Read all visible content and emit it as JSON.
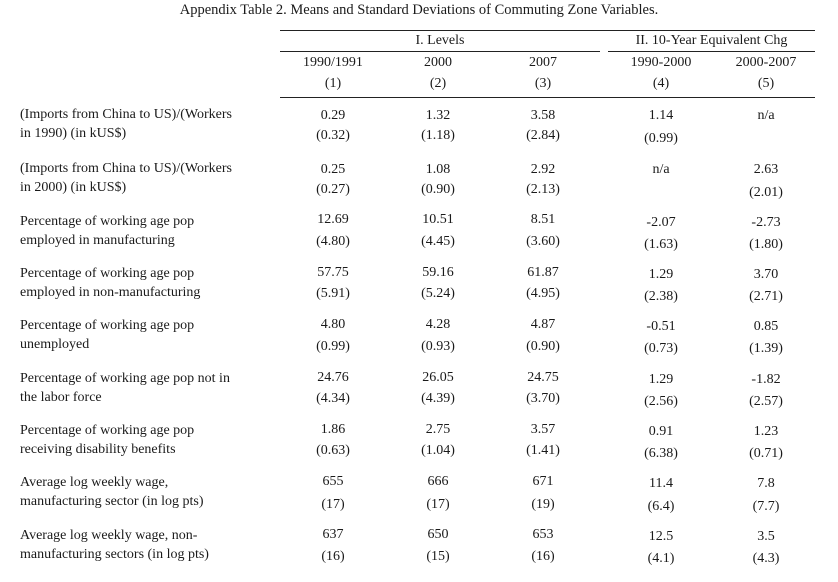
{
  "title": "Appendix Table 2. Means and Standard Deviations of Commuting Zone Variables.",
  "groups": {
    "levels": "I. Levels",
    "changes": "II. 10-Year Equivalent Chg"
  },
  "columns": [
    {
      "header": "1990/1991",
      "num": "(1)"
    },
    {
      "header": "2000",
      "num": "(2)"
    },
    {
      "header": "2007",
      "num": "(3)"
    },
    {
      "header": "1990-2000",
      "num": "(4)"
    },
    {
      "header": "2000-2007",
      "num": "(5)"
    }
  ],
  "rows": [
    {
      "label": [
        "(Imports from China to US)/(Workers",
        "in 1990) (in kUS$)"
      ],
      "means": [
        "0.29",
        "1.32",
        "3.58",
        "1.14",
        "n/a"
      ],
      "sds": [
        "(0.32)",
        "(1.18)",
        "(2.84)",
        "(0.99)",
        ""
      ]
    },
    {
      "label": [
        "(Imports from China to US)/(Workers",
        "in 2000) (in kUS$)"
      ],
      "means": [
        "0.25",
        "1.08",
        "2.92",
        "n/a",
        "2.63"
      ],
      "sds": [
        "(0.27)",
        "(0.90)",
        "(2.13)",
        "",
        "(2.01)"
      ]
    },
    {
      "label": [
        "Percentage of working age pop",
        "employed in manufacturing"
      ],
      "means": [
        "12.69",
        "10.51",
        "8.51",
        "-2.07",
        "-2.73"
      ],
      "sds": [
        "(4.80)",
        "(4.45)",
        "(3.60)",
        "(1.63)",
        "(1.80)"
      ]
    },
    {
      "label": [
        "Percentage of working age pop",
        "employed in non-manufacturing"
      ],
      "means": [
        "57.75",
        "59.16",
        "61.87",
        "1.29",
        "3.70"
      ],
      "sds": [
        "(5.91)",
        "(5.24)",
        "(4.95)",
        "(2.38)",
        "(2.71)"
      ]
    },
    {
      "label": [
        "Percentage of working age pop",
        "unemployed"
      ],
      "means": [
        "4.80",
        "4.28",
        "4.87",
        "-0.51",
        "0.85"
      ],
      "sds": [
        "(0.99)",
        "(0.93)",
        "(0.90)",
        "(0.73)",
        "(1.39)"
      ]
    },
    {
      "label": [
        "Percentage of working age pop not in",
        "the labor force"
      ],
      "means": [
        "24.76",
        "26.05",
        "24.75",
        "1.29",
        "-1.82"
      ],
      "sds": [
        "(4.34)",
        "(4.39)",
        "(3.70)",
        "(2.56)",
        "(2.57)"
      ]
    },
    {
      "label": [
        "Percentage of working age pop",
        "receiving disability benefits"
      ],
      "means": [
        "1.86",
        "2.75",
        "3.57",
        "0.91",
        "1.23"
      ],
      "sds": [
        "(0.63)",
        "(1.04)",
        "(1.41)",
        "(6.38)",
        "(0.71)"
      ]
    },
    {
      "label": [
        "Average log weekly wage,",
        "manufacturing sector (in log pts)"
      ],
      "means": [
        "655",
        "666",
        "671",
        "11.4",
        "7.8"
      ],
      "sds": [
        "(17)",
        "(17)",
        "(19)",
        "(6.4)",
        "(7.7)"
      ]
    },
    {
      "label": [
        "Average log weekly wage, non-",
        "manufacturing sectors (in log pts)"
      ],
      "means": [
        "637",
        "650",
        "653",
        "12.5",
        "3.5"
      ],
      "sds": [
        "(16)",
        "(15)",
        "(16)",
        "(4.1)",
        "(4.3)"
      ]
    }
  ]
}
